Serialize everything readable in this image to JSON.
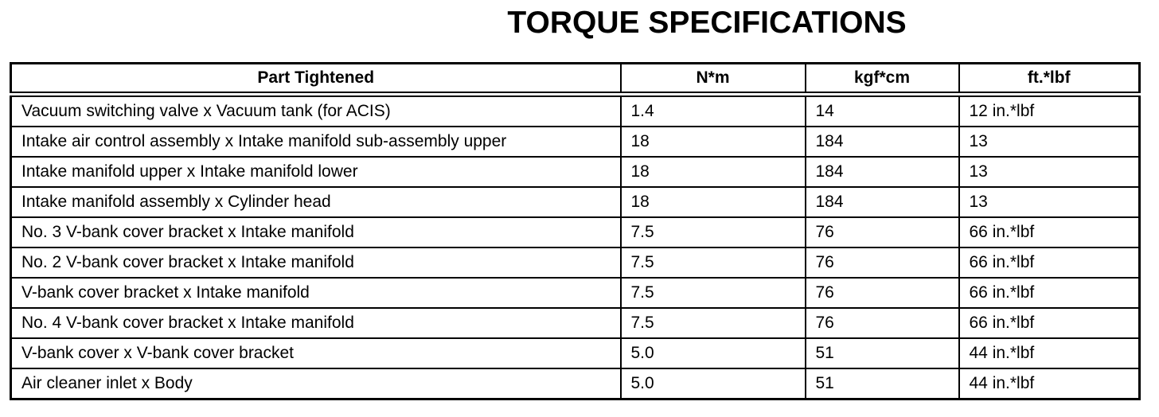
{
  "page": {
    "title": "TORQUE SPECIFICATIONS"
  },
  "table": {
    "columns": [
      "Part Tightened",
      "N*m",
      "kgf*cm",
      "ft.*lbf"
    ],
    "rows": [
      {
        "part": "Vacuum switching valve x Vacuum tank (for ACIS)",
        "nm": "1.4",
        "kgfcm": "14",
        "ftlbf": "12 in.*lbf"
      },
      {
        "part": "Intake air control assembly x Intake manifold sub-assembly upper",
        "nm": "18",
        "kgfcm": "184",
        "ftlbf": "13"
      },
      {
        "part": "Intake manifold upper x Intake manifold lower",
        "nm": "18",
        "kgfcm": "184",
        "ftlbf": "13"
      },
      {
        "part": "Intake manifold assembly x Cylinder head",
        "nm": "18",
        "kgfcm": "184",
        "ftlbf": "13"
      },
      {
        "part": "No. 3 V-bank cover bracket x Intake manifold",
        "nm": "7.5",
        "kgfcm": "76",
        "ftlbf": "66 in.*lbf"
      },
      {
        "part": "No. 2 V-bank cover bracket x Intake manifold",
        "nm": "7.5",
        "kgfcm": "76",
        "ftlbf": "66 in.*lbf"
      },
      {
        "part": "V-bank cover bracket x Intake manifold",
        "nm": "7.5",
        "kgfcm": "76",
        "ftlbf": "66 in.*lbf"
      },
      {
        "part": "No. 4 V-bank cover bracket x Intake manifold",
        "nm": "7.5",
        "kgfcm": "76",
        "ftlbf": "66 in.*lbf"
      },
      {
        "part": "V-bank cover x V-bank cover bracket",
        "nm": "5.0",
        "kgfcm": "51",
        "ftlbf": "44 in.*lbf"
      },
      {
        "part": "Air cleaner inlet x Body",
        "nm": "5.0",
        "kgfcm": "51",
        "ftlbf": "44 in.*lbf"
      }
    ]
  }
}
